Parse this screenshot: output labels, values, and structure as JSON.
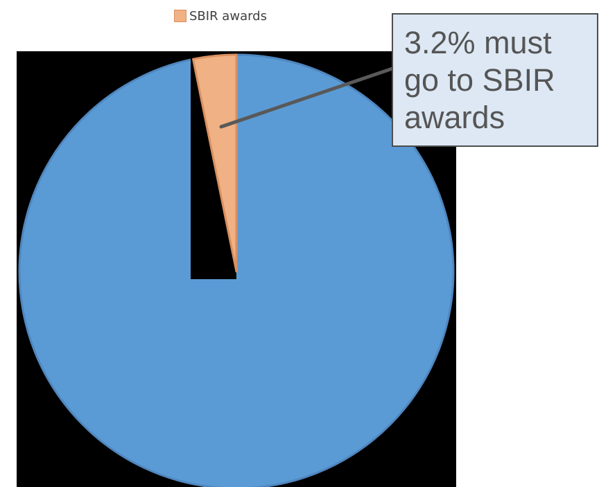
{
  "chart_data": {
    "type": "pie",
    "slices": [
      {
        "name": "",
        "value": 96.8,
        "color": "#5b9bd5"
      },
      {
        "name": "SBIR awards",
        "value": 3.2,
        "color": "#f0b184"
      }
    ],
    "legend": {
      "position": "top",
      "entries": [
        "SBIR awards"
      ]
    },
    "annotations": [
      "3.2% must go to SBIR awards"
    ]
  },
  "colors": {
    "main_slice": "#5b9bd5",
    "main_slice_edge": "#4f86be",
    "sbir_slice": "#f0b184",
    "sbir_slice_edge": "#d9905f",
    "callout_fill": "#dde8f4",
    "callout_border": "#4d4d4d",
    "leader_line": "#595959",
    "background_occluder": "#000000"
  }
}
